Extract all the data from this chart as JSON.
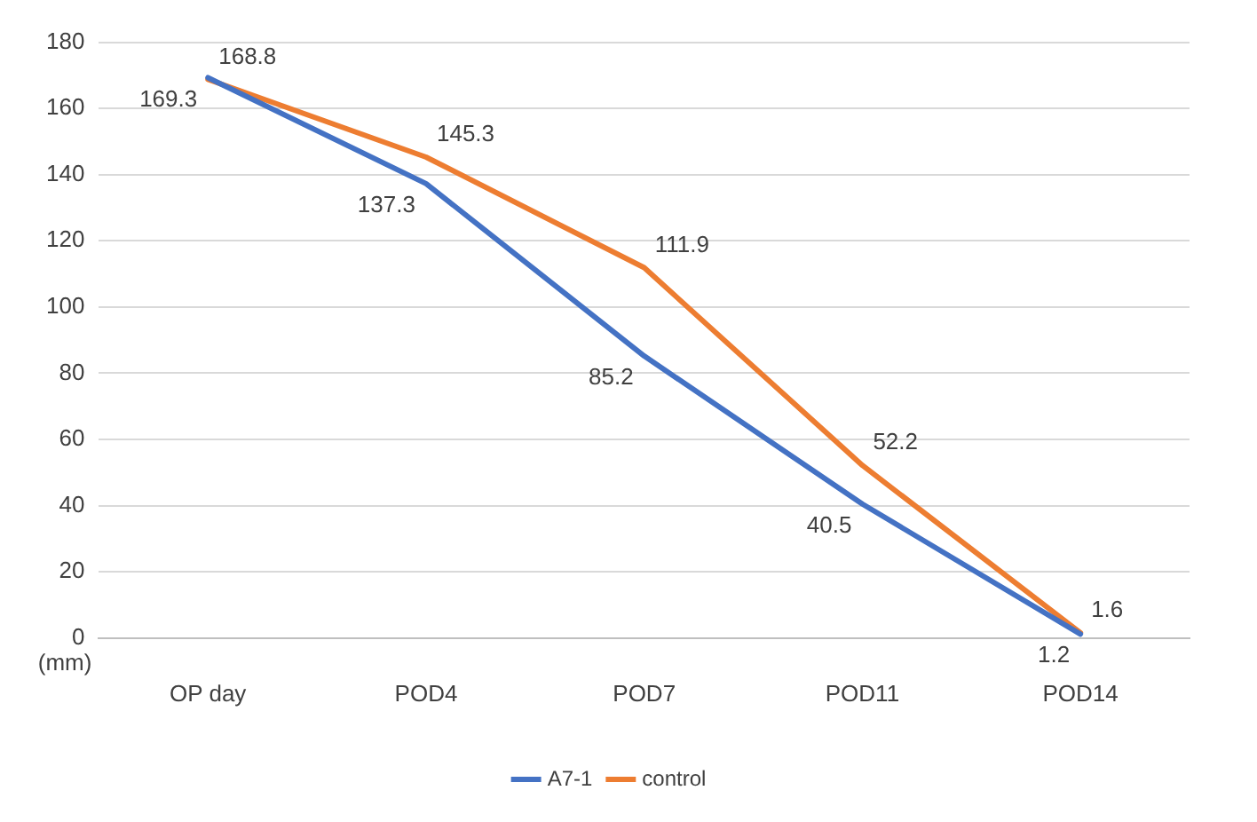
{
  "chart_data": {
    "type": "line",
    "ylabel": "(mm)",
    "categories": [
      "OP day",
      "POD4",
      "POD7",
      "POD11",
      "POD14"
    ],
    "series": [
      {
        "name": "A7-1",
        "color": "#4472c4",
        "values": [
          169.3,
          137.3,
          85.2,
          40.5,
          1.2
        ]
      },
      {
        "name": "control",
        "color": "#ed7d31",
        "values": [
          168.8,
          145.3,
          111.9,
          52.2,
          1.6
        ]
      }
    ],
    "ylim": [
      0,
      180
    ],
    "yticks": [
      0,
      20,
      40,
      60,
      80,
      100,
      120,
      140,
      160,
      180
    ],
    "grid": "y",
    "legend": "bottom",
    "marker": "none",
    "line_style": "solid",
    "data_labels": true
  }
}
